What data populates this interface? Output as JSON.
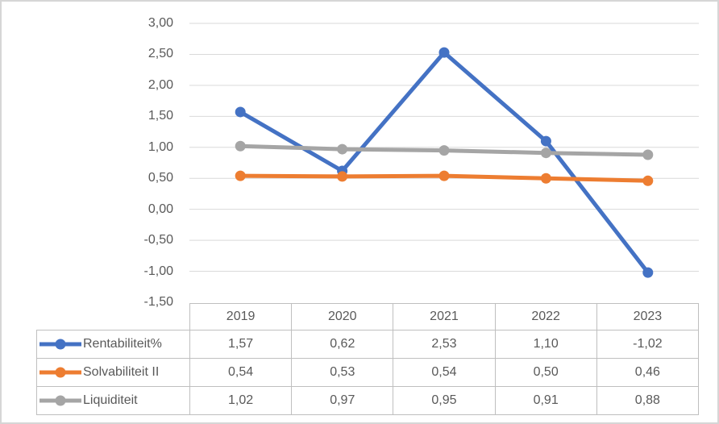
{
  "chart_data": {
    "type": "line",
    "title": "",
    "xlabel": "",
    "ylabel": "",
    "categories": [
      "2019",
      "2020",
      "2021",
      "2022",
      "2023"
    ],
    "series": [
      {
        "name": "Rentabiliteit%",
        "color": "#4472C4",
        "values": [
          1.57,
          0.62,
          2.53,
          1.1,
          -1.02
        ],
        "display_values": [
          "1,57",
          "0,62",
          "2,53",
          "1,10",
          "-1,02"
        ]
      },
      {
        "name": "Solvabiliteit II",
        "color": "#ED7D31",
        "values": [
          0.54,
          0.53,
          0.54,
          0.5,
          0.46
        ],
        "display_values": [
          "0,54",
          "0,53",
          "0,54",
          "0,50",
          "0,46"
        ]
      },
      {
        "name": "Liquiditeit",
        "color": "#A5A5A5",
        "values": [
          1.02,
          0.97,
          0.95,
          0.91,
          0.88
        ],
        "display_values": [
          "1,02",
          "0,97",
          "0,95",
          "0,91",
          "0,88"
        ]
      }
    ],
    "y_axis": {
      "min": -1.5,
      "max": 3.0,
      "tick_step": 0.5,
      "tick_labels": [
        "3,00",
        "2,50",
        "2,00",
        "1,50",
        "1,00",
        "0,50",
        "0,00",
        "-0,50",
        "-1,00",
        "-1,50"
      ]
    },
    "grid": true,
    "legend_position": "table-left",
    "colors": {
      "gridline": "#D9D9D9",
      "axis_text": "#595959",
      "table_border": "#BFBFBF",
      "table_text": "#595959",
      "frame_border": "#D6D6D6"
    }
  }
}
